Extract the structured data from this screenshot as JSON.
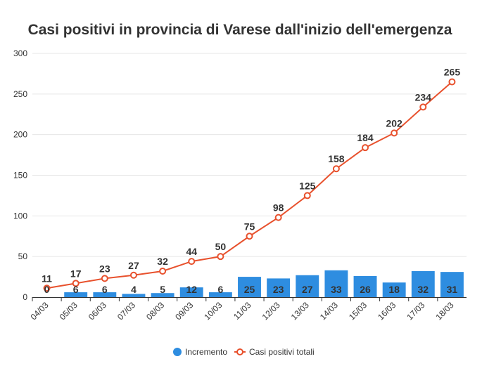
{
  "chart_data": {
    "type": "bar",
    "title": "Casi positivi in provincia di Varese dall'inizio dell'emergenza",
    "categories": [
      "04/03",
      "05/03",
      "06/03",
      "07/03",
      "08/03",
      "09/03",
      "10/03",
      "11/03",
      "12/03",
      "13/03",
      "14/03",
      "15/03",
      "16/03",
      "17/03",
      "18/03"
    ],
    "series": [
      {
        "name": "Incremento",
        "type": "bar",
        "color": "#2e8de0",
        "values": [
          0,
          6,
          6,
          4,
          5,
          12,
          6,
          25,
          23,
          27,
          33,
          26,
          18,
          32,
          31
        ]
      },
      {
        "name": "Casi positivi totali",
        "type": "line",
        "color": "#e8512d",
        "values": [
          11,
          17,
          23,
          27,
          32,
          44,
          50,
          75,
          98,
          125,
          158,
          184,
          202,
          234,
          265
        ]
      }
    ],
    "yticks": [
      "0",
      "50",
      "100",
      "150",
      "200",
      "250",
      "300"
    ],
    "ylim": [
      0,
      300
    ],
    "grid": true,
    "legend": "bottom-center"
  }
}
